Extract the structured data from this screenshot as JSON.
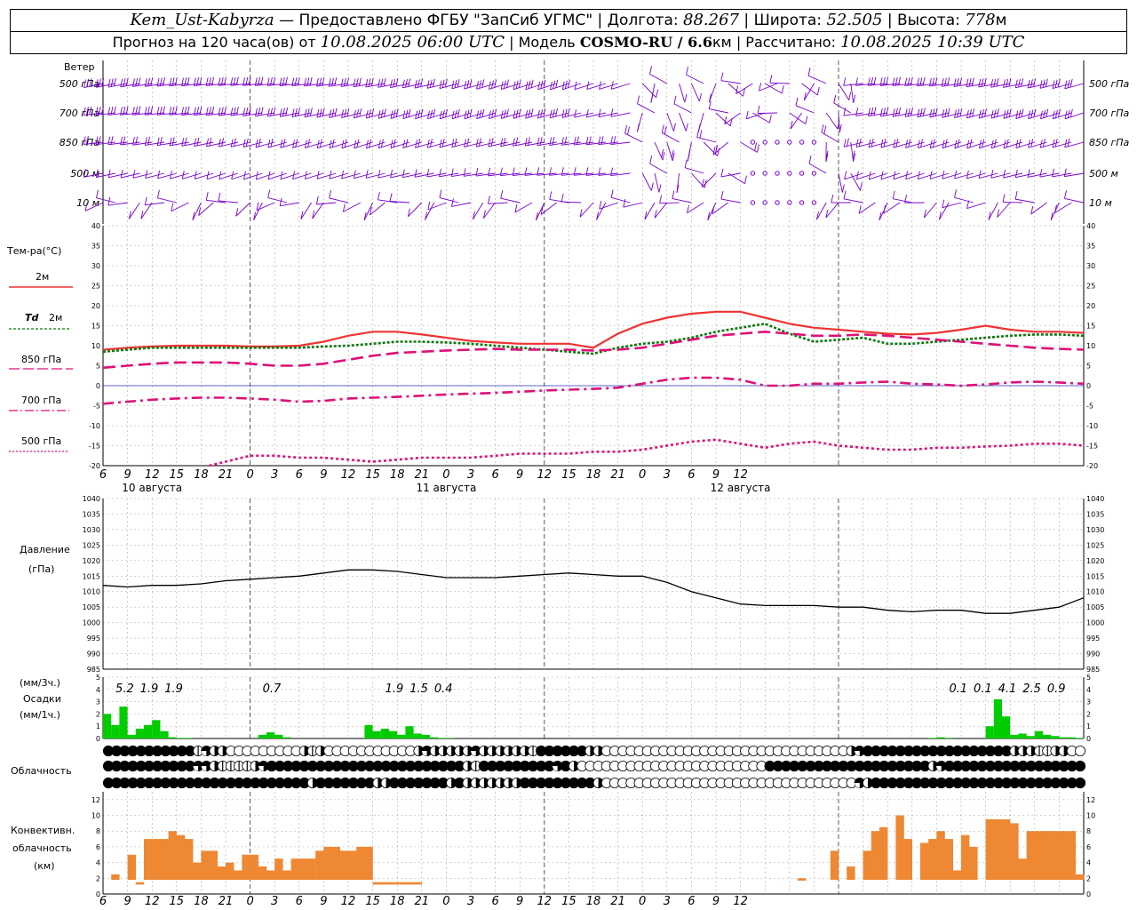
{
  "header": {
    "station": "Kem_Ust-Kabyrza",
    "provider": "Предоставлено ФГБУ \"ЗапСиб УГМС\"",
    "lon_label": "Долгота:",
    "lon": "88.267",
    "lat_label": "Широта:",
    "lat": "52.505",
    "alt_label": "Высота:",
    "alt": "778",
    "alt_unit": "м",
    "forecast_label": "Прогноз на 120 часа(ов) от",
    "forecast_start": "10.08.2025 06:00 UTC",
    "model_label": "Модель",
    "model": "COSMO-RU / 6.6",
    "model_unit": "км",
    "calc_label": "Рассчитано:",
    "calc_time": "10.08.2025 10:39 UTC"
  },
  "labels": {
    "wind": "Ветер",
    "levels": [
      "500 гПа",
      "700 гПа",
      "850 гПа",
      "500 м",
      "10 м"
    ],
    "temp": "Тем-ра(°C)",
    "t2m": "2м",
    "td_sym": "Td",
    "td2m": "2м",
    "t850": "850 гПа",
    "t700": "700 гПа",
    "t500": "500 гПа",
    "pressure1": "Давление",
    "pressure2": "(гПа)",
    "precip1": "(мм/3ч.)",
    "precip2": "Осадки",
    "precip3": "(мм/1ч.)",
    "cloud": "Облачность",
    "conv1": "Конвективн.",
    "conv2": "облачность",
    "conv3": "(км)"
  },
  "colors": {
    "wind": "#7700cc",
    "t2m": "#ee3333",
    "td2m": "#117711",
    "t850": "#dd1177",
    "t700": "#dd1177",
    "t500": "#dd1177",
    "zero": "#3333cc",
    "pressure": "#000000",
    "precip": "#00cc00",
    "conv": "#ee8833"
  },
  "chart_data": {
    "type": "line",
    "x_hours_from_start": [
      0,
      120
    ],
    "x_tick_labels": [
      "6",
      "9",
      "12",
      "15",
      "18",
      "21",
      "0",
      "3",
      "6",
      "9",
      "12",
      "15",
      "18",
      "21",
      "0",
      "3",
      "6",
      "9",
      "12",
      "15",
      "18",
      "21",
      "0",
      "3",
      "6",
      "9",
      "12"
    ],
    "day_labels": [
      "10 августа",
      "11 августа",
      "12 августа"
    ],
    "temperature": {
      "ylim": [
        -20,
        40
      ],
      "yticks": [
        -20,
        -15,
        -10,
        -5,
        0,
        5,
        10,
        15,
        20,
        25,
        30,
        35,
        40
      ],
      "series": [
        {
          "name": "2м",
          "style": "solid",
          "hours": [
            0,
            3,
            6,
            9,
            12,
            15,
            18,
            21,
            24,
            27,
            30,
            33,
            36,
            39,
            42,
            45,
            48,
            51,
            54,
            57,
            60,
            63,
            66,
            69,
            72,
            75,
            78,
            81,
            84,
            87,
            90,
            93,
            96,
            99,
            102,
            105,
            108,
            111,
            114,
            117,
            120
          ],
          "values": [
            9,
            9.5,
            9.8,
            10,
            10,
            10,
            9.8,
            9.8,
            10,
            11,
            12.5,
            13.5,
            13.5,
            12.8,
            12,
            11.2,
            10.8,
            10.5,
            10.5,
            10.5,
            9.5,
            13,
            15.5,
            17,
            18,
            18.5,
            18.5,
            17,
            15.5,
            14.5,
            14,
            13.5,
            13,
            12.8,
            13.2,
            14,
            15,
            14,
            13.5,
            13.5,
            13.2
          ]
        },
        {
          "name": "2м",
          "style": "dotted",
          "hours": [
            0,
            3,
            6,
            9,
            12,
            15,
            18,
            21,
            24,
            27,
            30,
            33,
            36,
            39,
            42,
            45,
            48,
            51,
            54,
            57,
            60,
            63,
            66,
            69,
            72,
            75,
            78,
            81,
            84,
            87,
            90,
            93,
            96,
            99,
            102,
            105,
            108,
            111,
            114,
            117,
            120
          ],
          "values": [
            8.5,
            9,
            9.5,
            9.5,
            9.5,
            9.5,
            9.5,
            9.5,
            9.5,
            9.8,
            10,
            10.5,
            11,
            11,
            10.8,
            10.5,
            10,
            9.5,
            9,
            8.5,
            8,
            9.5,
            10.5,
            11,
            12,
            13.5,
            14.5,
            15.5,
            13,
            11,
            11.5,
            12,
            10.5,
            10.5,
            11,
            11.5,
            12,
            12.5,
            12.8,
            12.8,
            12.5
          ]
        },
        {
          "name": "850 гПа",
          "style": "longdash",
          "hours": [
            0,
            3,
            6,
            9,
            12,
            15,
            18,
            21,
            24,
            27,
            30,
            33,
            36,
            39,
            42,
            45,
            48,
            51,
            54,
            57,
            60,
            63,
            66,
            69,
            72,
            75,
            78,
            81,
            84,
            87,
            90,
            93,
            96,
            99,
            102,
            105,
            108,
            111,
            114,
            117,
            120
          ],
          "values": [
            4.5,
            5,
            5.5,
            5.8,
            5.8,
            5.8,
            5.5,
            5,
            5,
            5.5,
            6.5,
            7.5,
            8.2,
            8.5,
            8.8,
            9,
            9.2,
            9,
            9,
            9,
            8.8,
            9,
            9.5,
            10.5,
            11.5,
            12.5,
            13,
            13.5,
            13,
            12.5,
            12.5,
            12.8,
            12.5,
            12,
            11.5,
            11,
            10.5,
            10,
            9.5,
            9.2,
            9
          ]
        },
        {
          "name": "700 гПа",
          "style": "dashdot",
          "hours": [
            0,
            3,
            6,
            9,
            12,
            15,
            18,
            21,
            24,
            27,
            30,
            33,
            36,
            39,
            42,
            45,
            48,
            51,
            54,
            57,
            60,
            63,
            66,
            69,
            72,
            75,
            78,
            81,
            84,
            87,
            90,
            93,
            96,
            99,
            102,
            105,
            108,
            111,
            114,
            117,
            120
          ],
          "values": [
            -4.5,
            -4,
            -3.5,
            -3.2,
            -3,
            -3,
            -3.2,
            -3.5,
            -4,
            -3.8,
            -3.2,
            -3,
            -2.8,
            -2.5,
            -2.2,
            -2,
            -1.8,
            -1.5,
            -1.2,
            -1,
            -0.8,
            -0.5,
            0.5,
            1.5,
            2,
            2,
            1.5,
            0,
            0,
            0.5,
            0.5,
            0.8,
            1,
            0.5,
            0.3,
            0,
            0.3,
            0.8,
            1,
            0.8,
            0.5
          ]
        },
        {
          "name": "500 гПа",
          "style": "dot",
          "hours": [
            13,
            15,
            18,
            21,
            24,
            27,
            30,
            33,
            36,
            39,
            42,
            45,
            48,
            51,
            54,
            57,
            60,
            63,
            66,
            69,
            72,
            75,
            78,
            81,
            84,
            87,
            90,
            93,
            96,
            99,
            102,
            105,
            108,
            111,
            114,
            117,
            120
          ],
          "values": [
            -20,
            -19,
            -17.5,
            -17.5,
            -18,
            -18,
            -18.5,
            -19,
            -18.5,
            -18,
            -18,
            -18,
            -17.5,
            -17,
            -17,
            -17,
            -16.5,
            -16.5,
            -16,
            -15,
            -14,
            -13.5,
            -14.5,
            -15.5,
            -14.5,
            -14,
            -15,
            -15.5,
            -16,
            -16,
            -15.5,
            -15.5,
            -15.2,
            -15,
            -14.5,
            -14.5,
            -15
          ]
        }
      ]
    },
    "pressure": {
      "ylim": [
        985,
        1040
      ],
      "yticks": [
        985,
        990,
        995,
        1000,
        1005,
        1010,
        1015,
        1020,
        1025,
        1030,
        1035,
        1040
      ],
      "hours": [
        0,
        3,
        6,
        9,
        12,
        15,
        18,
        21,
        24,
        27,
        30,
        33,
        36,
        39,
        42,
        45,
        48,
        51,
        54,
        57,
        60,
        63,
        66,
        69,
        72,
        75,
        78,
        81,
        84,
        87,
        90,
        93,
        96,
        99,
        102,
        105,
        108,
        111,
        114,
        117,
        120
      ],
      "values": [
        1012,
        1011.5,
        1012,
        1012,
        1012.5,
        1013.5,
        1014,
        1014.5,
        1015,
        1016,
        1017,
        1017,
        1016.5,
        1015.5,
        1014.5,
        1014.5,
        1014.5,
        1015,
        1015.5,
        1016,
        1015.5,
        1015,
        1015,
        1013,
        1010,
        1008,
        1006,
        1005.5,
        1005.5,
        1005.5,
        1005,
        1005,
        1004,
        1003.5,
        1004,
        1004,
        1003,
        1003,
        1004,
        1005,
        1008
      ]
    },
    "precip_3h_labels": [
      {
        "hour": 2,
        "text": "5.2"
      },
      {
        "hour": 5,
        "text": "1.9"
      },
      {
        "hour": 8,
        "text": "1.9"
      },
      {
        "hour": 20,
        "text": "0.7"
      },
      {
        "hour": 35,
        "text": "1.9"
      },
      {
        "hour": 38,
        "text": "1.5"
      },
      {
        "hour": 41,
        "text": "0.4"
      },
      {
        "hour": 104,
        "text": "0.1"
      },
      {
        "hour": 107,
        "text": "0.1"
      },
      {
        "hour": 110,
        "text": "4.1"
      },
      {
        "hour": 113,
        "text": "2.5"
      },
      {
        "hour": 116,
        "text": "0.9"
      }
    ],
    "precip": {
      "ylim": [
        0,
        5
      ],
      "yticks": [
        0,
        1,
        2,
        3,
        4,
        5
      ],
      "hours": [
        0,
        1,
        2,
        3,
        4,
        5,
        6,
        7,
        8,
        9,
        10,
        19,
        20,
        21,
        22,
        32,
        33,
        34,
        35,
        36,
        37,
        38,
        39,
        40,
        41,
        42,
        101,
        102,
        103,
        108,
        109,
        110,
        111,
        112,
        113,
        114,
        115,
        116,
        117,
        118,
        119
      ],
      "values": [
        2,
        1.1,
        2.6,
        0.3,
        0.8,
        1.1,
        1.5,
        0.6,
        0.1,
        0.05,
        0.05,
        0.3,
        0.5,
        0.3,
        0.1,
        1.1,
        0.6,
        0.8,
        0.6,
        0.3,
        1,
        0.4,
        0.3,
        0.1,
        0.05,
        0.05,
        0.05,
        0.1,
        0.05,
        1,
        3.2,
        1.8,
        0.3,
        0.4,
        0.2,
        0.6,
        0.3,
        0.2,
        0.1,
        0.1,
        0.05
      ]
    },
    "cloud_rows": [
      "ffffffffffftqhheeeeeeeeehtheeeeeeeeeeehqhhhhhqhhhhhhtffffffhheeeeeeeeeeeeeeeeeeeeeeeeeeeeeehqffffffffffffffffffhhhtthheeeeeeee",
      "fffffffffffqqhtttthqffffffffffffffffffffffffhtfffffffffqfheeeeeeeeeeeeeeeeeeeeeeeffffffffffffffffffffhqffffffffffffffffffffffffff",
      "fffffffffffffffffffffffffhfffffffhhfffffffhfhhhhhhhfffffffffheeeeeeeeeeeeeeeeeeeeeeeeeeeeeeeqhffffffffffffffffffffffffffffffff"
    ],
    "convective": {
      "ylim": [
        0,
        13
      ],
      "yticks": [
        0,
        2,
        4,
        6,
        8,
        10,
        12
      ],
      "bars": [
        [
          1,
          1.8,
          2.5
        ],
        [
          3,
          1.8,
          5
        ],
        [
          4,
          1.8,
          1.5
        ],
        [
          5,
          1.8,
          7
        ],
        [
          6,
          1.8,
          7
        ],
        [
          7,
          1.8,
          7
        ],
        [
          8,
          1.8,
          8
        ],
        [
          9,
          1.8,
          7.5
        ],
        [
          10,
          1.8,
          7
        ],
        [
          11,
          1.8,
          4
        ],
        [
          12,
          1.8,
          5.5
        ],
        [
          13,
          1.8,
          5.5
        ],
        [
          14,
          1.8,
          3.5
        ],
        [
          15,
          1.8,
          4
        ],
        [
          16,
          1.8,
          3
        ],
        [
          17,
          1.8,
          5
        ],
        [
          18,
          1.8,
          5
        ],
        [
          19,
          1.8,
          3.5
        ],
        [
          20,
          1.8,
          3
        ],
        [
          21,
          1.8,
          4.5
        ],
        [
          22,
          1.8,
          3
        ],
        [
          23,
          1.8,
          4.5
        ],
        [
          24,
          1.8,
          4.5
        ],
        [
          25,
          1.8,
          4.5
        ],
        [
          26,
          1.8,
          5.5
        ],
        [
          27,
          1.8,
          6
        ],
        [
          28,
          1.8,
          6
        ],
        [
          29,
          1.8,
          5.5
        ],
        [
          30,
          1.8,
          5.5
        ],
        [
          31,
          1.8,
          6
        ],
        [
          32,
          1.8,
          6
        ],
        [
          33,
          1.8,
          1.5
        ],
        [
          34,
          1.8,
          1.5
        ],
        [
          35,
          1.8,
          1.5
        ],
        [
          36,
          1.8,
          1.5
        ],
        [
          37,
          1.8,
          1.5
        ],
        [
          38,
          1.8,
          1.5
        ],
        [
          85,
          1.8,
          2
        ],
        [
          89,
          1.8,
          5.5
        ],
        [
          91,
          1.8,
          3.5
        ],
        [
          93,
          1.8,
          5.5
        ],
        [
          94,
          1.8,
          8
        ],
        [
          95,
          1.8,
          8.5
        ],
        [
          97,
          1.8,
          10
        ],
        [
          98,
          1.8,
          7
        ],
        [
          100,
          1.8,
          6.5
        ],
        [
          101,
          1.8,
          7
        ],
        [
          102,
          1.8,
          8
        ],
        [
          103,
          1.8,
          7
        ],
        [
          104,
          1.8,
          3
        ],
        [
          105,
          1.8,
          7.5
        ],
        [
          106,
          1.8,
          6
        ],
        [
          108,
          1.8,
          9.5
        ],
        [
          109,
          1.8,
          9.5
        ],
        [
          110,
          1.8,
          9.5
        ],
        [
          111,
          1.8,
          9
        ],
        [
          112,
          1.8,
          4.5
        ],
        [
          113,
          1.8,
          8
        ],
        [
          114,
          1.8,
          8
        ],
        [
          115,
          1.8,
          8
        ],
        [
          116,
          1.8,
          8
        ],
        [
          117,
          1.8,
          8
        ],
        [
          118,
          1.8,
          8
        ],
        [
          119,
          1.8,
          2.5
        ]
      ]
    }
  }
}
